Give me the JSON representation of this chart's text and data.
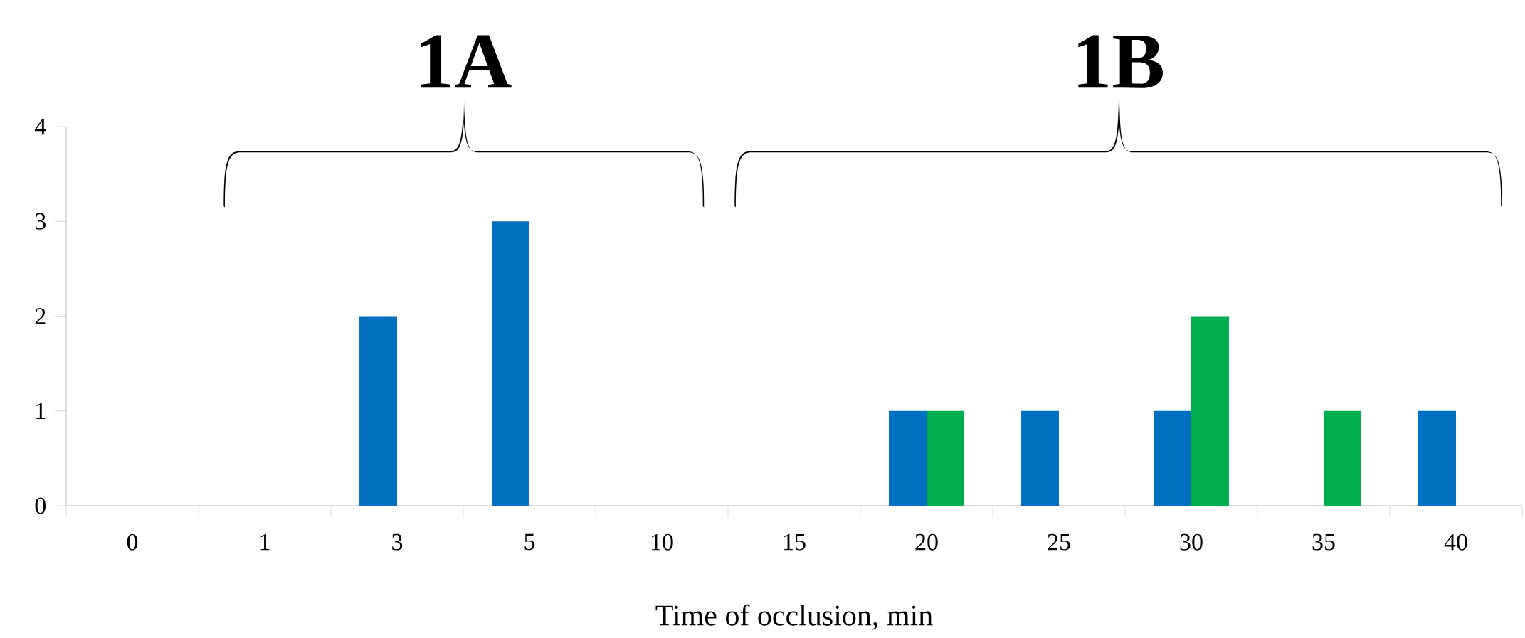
{
  "chart_data": {
    "type": "bar",
    "xlabel": "Time of occlusion, min",
    "categories": [
      "0",
      "1",
      "3",
      "5",
      "10",
      "15",
      "20",
      "25",
      "30",
      "35",
      "40"
    ],
    "series": [
      {
        "color": "#0070c0",
        "values": [
          0,
          0,
          2,
          3,
          0,
          0,
          1,
          1,
          1,
          0,
          1
        ]
      },
      {
        "color": "#00b050",
        "values": [
          0,
          0,
          0,
          0,
          0,
          0,
          1,
          0,
          2,
          1,
          0
        ]
      }
    ],
    "ylim": [
      0,
      4
    ],
    "yticks": [
      0,
      1,
      2,
      3,
      4
    ],
    "grid": false,
    "annotations": [
      "1A",
      "1B"
    ]
  }
}
